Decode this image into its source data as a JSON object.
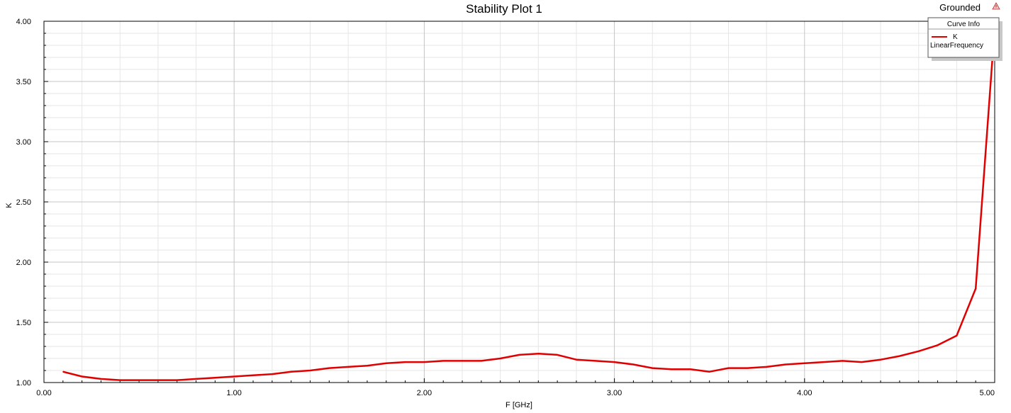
{
  "chart_data": {
    "type": "line",
    "title": "Stability Plot 1",
    "corner_label": "Grounded",
    "xlabel": "F [GHz]",
    "ylabel": "K",
    "xlim": [
      0,
      5
    ],
    "ylim": [
      1,
      4
    ],
    "x_ticks": [
      "0.00",
      "1.00",
      "2.00",
      "3.00",
      "4.00",
      "5.00"
    ],
    "y_ticks": [
      "1.00",
      "1.50",
      "2.00",
      "2.50",
      "3.00",
      "3.50",
      "4.00"
    ],
    "grid": true,
    "legend": {
      "header": "Curve Info",
      "placement": "top-right",
      "entries": [
        {
          "name": "K",
          "subtitle": "LinearFrequency",
          "color": "#e00000"
        }
      ]
    },
    "series": [
      {
        "name": "K",
        "color": "#e00000",
        "x": [
          0.1,
          0.2,
          0.3,
          0.4,
          0.5,
          0.6,
          0.7,
          0.8,
          0.9,
          1.0,
          1.1,
          1.2,
          1.3,
          1.4,
          1.5,
          1.6,
          1.7,
          1.8,
          1.9,
          2.0,
          2.1,
          2.2,
          2.3,
          2.4,
          2.5,
          2.6,
          2.7,
          2.8,
          2.9,
          3.0,
          3.1,
          3.2,
          3.3,
          3.4,
          3.5,
          3.6,
          3.7,
          3.8,
          3.9,
          4.0,
          4.1,
          4.2,
          4.3,
          4.4,
          4.5,
          4.6,
          4.7,
          4.8,
          4.9,
          5.0
        ],
        "values": [
          1.09,
          1.05,
          1.03,
          1.02,
          1.02,
          1.02,
          1.02,
          1.03,
          1.04,
          1.05,
          1.06,
          1.07,
          1.09,
          1.1,
          1.12,
          1.13,
          1.14,
          1.16,
          1.17,
          1.17,
          1.18,
          1.18,
          1.18,
          1.2,
          1.23,
          1.24,
          1.23,
          1.19,
          1.18,
          1.17,
          1.15,
          1.12,
          1.11,
          1.11,
          1.09,
          1.12,
          1.12,
          1.13,
          1.15,
          1.16,
          1.17,
          1.18,
          1.17,
          1.19,
          1.22,
          1.26,
          1.31,
          1.39,
          1.78,
          3.95
        ]
      }
    ]
  }
}
